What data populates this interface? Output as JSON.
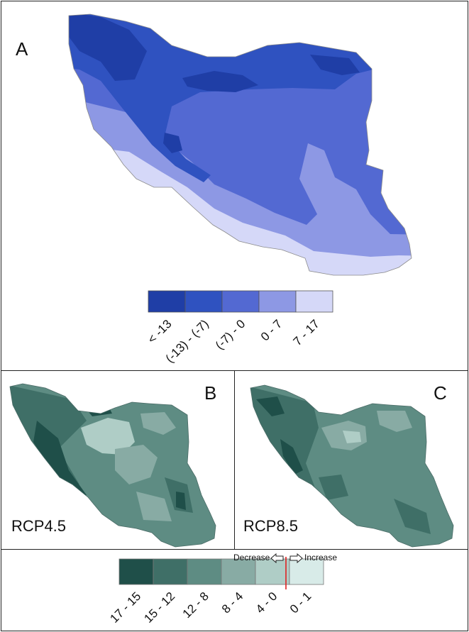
{
  "panel_a": {
    "letter": "A",
    "legend": [
      {
        "label": "< -13",
        "color": "#1f3ea6"
      },
      {
        "label": "(-13) - (-7)",
        "color": "#2f52c0"
      },
      {
        "label": "(-7) - 0",
        "color": "#5369d2"
      },
      {
        "label": "0 - 7",
        "color": "#8d98e4"
      },
      {
        "label": "7 - 17",
        "color": "#d5d8f8"
      }
    ]
  },
  "panel_b": {
    "letter": "B",
    "scenario": "RCP4.5"
  },
  "panel_c": {
    "letter": "C",
    "scenario": "RCP8.5"
  },
  "legend2": {
    "classes": [
      {
        "label": "17 - 15",
        "color": "#1f4f49"
      },
      {
        "label": "15 - 12",
        "color": "#3f6f67"
      },
      {
        "label": "12 - 8",
        "color": "#5e8c83"
      },
      {
        "label": "8 - 4",
        "color": "#88aba4"
      },
      {
        "label": "4 - 0",
        "color": "#afcdc6"
      },
      {
        "label": "0 - 1",
        "color": "#d8ebe8"
      }
    ],
    "decrease_label": "Decrease",
    "increase_label": "Increase",
    "divider_color": "#e02020"
  }
}
